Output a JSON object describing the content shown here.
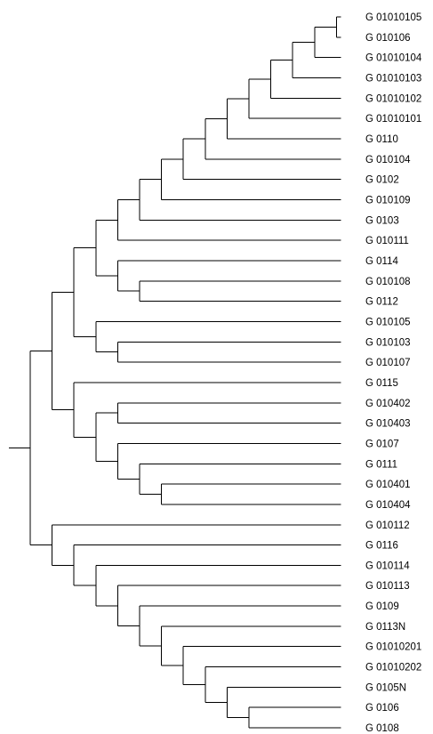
{
  "colors": {
    "background": "#ffffff",
    "line": "#000000",
    "text": "#000000"
  },
  "tree": {
    "children": [
      {
        "children": [
          {
            "children": [
              {
                "children": [
                  {
                    "children": [
                      {
                        "children": [
                          {
                            "children": [
                              {
                                "children": [
                                  {
                                    "children": [
                                      {
                                        "children": [
                                          {
                                            "children": [
                                              {
                                                "label": "G 01010105"
                                              },
                                              {
                                                "label": "G 010106"
                                              }
                                            ]
                                          },
                                          {
                                            "label": "G 01010104"
                                          }
                                        ]
                                      },
                                      {
                                        "label": "G 01010103"
                                      }
                                    ]
                                  },
                                  {
                                    "label": "G 01010102"
                                  }
                                ]
                              },
                              {
                                "label": "G 01010101"
                              }
                            ]
                          },
                          {
                            "label": "G 0110"
                          }
                        ]
                      },
                      {
                        "label": "G 010104"
                      }
                    ]
                  },
                  {
                    "label": "G 0102"
                  }
                ]
              },
              {
                "label": "G 010109"
              }
            ]
          },
          {
            "label": "G 0103"
          }
        ]
      },
      {
        "label": "G 010111"
      }
    ]
  }
}
